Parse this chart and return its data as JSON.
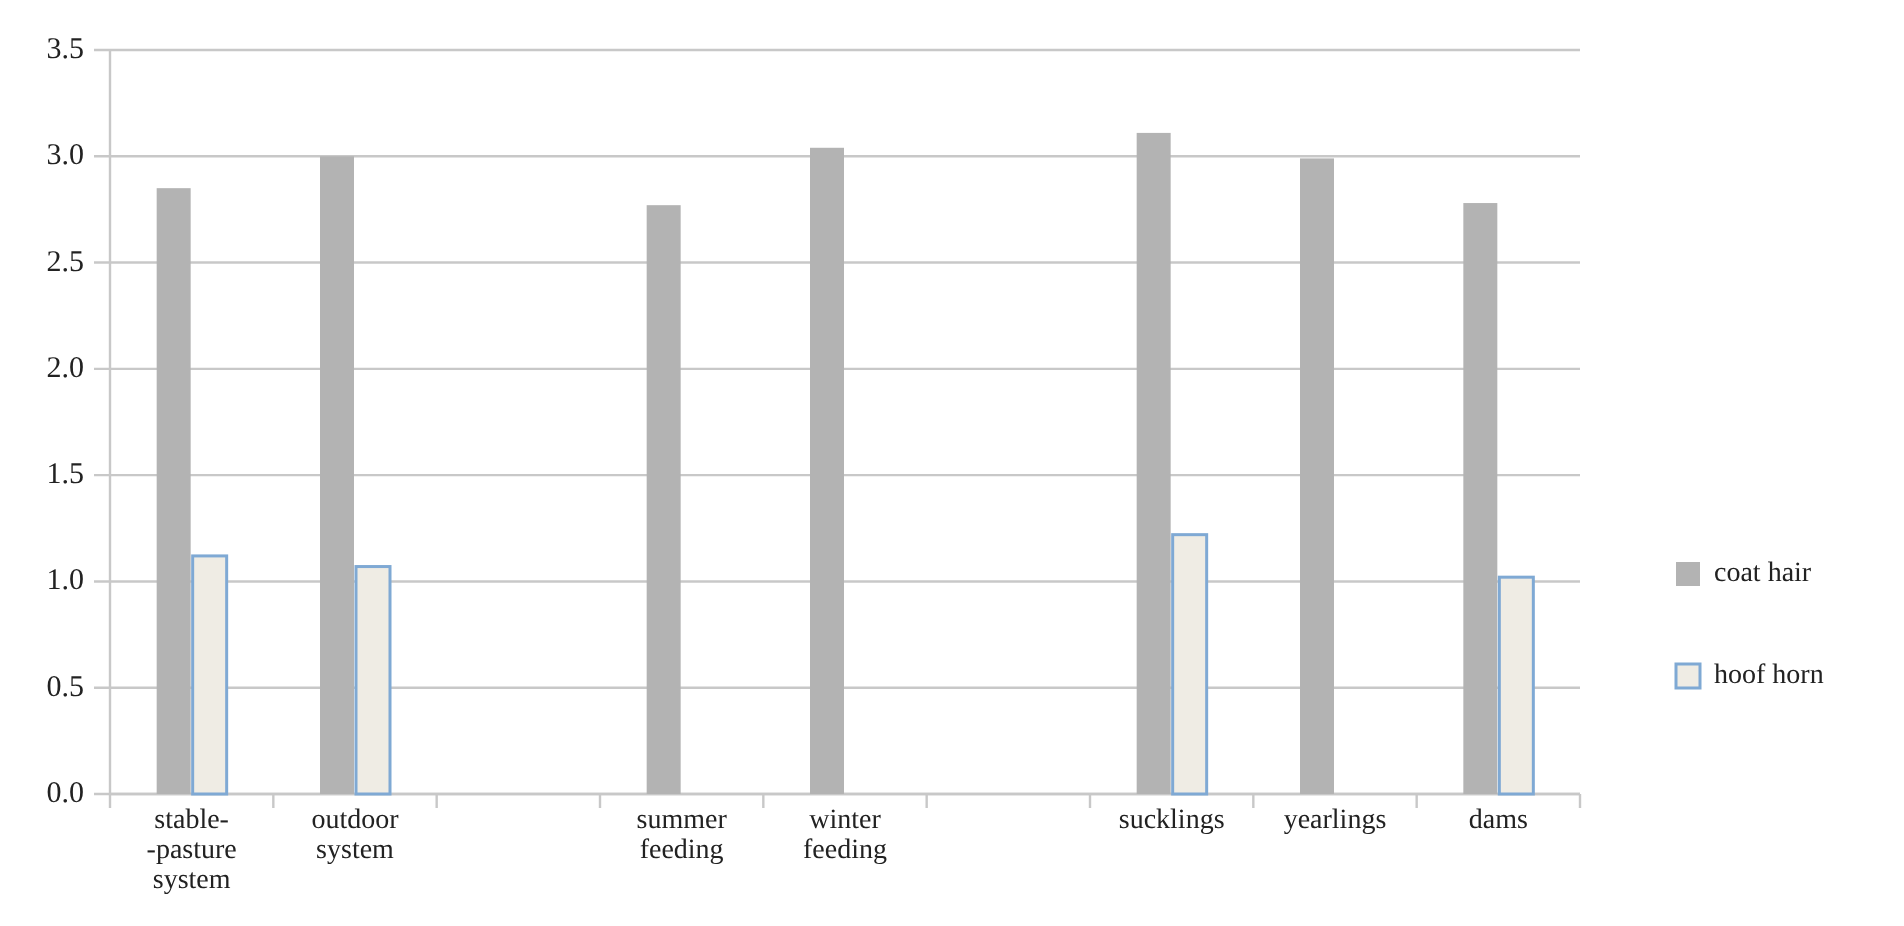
{
  "chart_data": {
    "type": "bar",
    "categories": [
      "stable-\n-pasture\nsystem",
      "outdoor\nsystem",
      null,
      "summer\nfeeding",
      "winter\nfeeding",
      null,
      "sucklings",
      "yearlings",
      "dams"
    ],
    "series": [
      {
        "name": "coat hair",
        "color": "#b3b3b3",
        "values": [
          2.85,
          3.0,
          null,
          2.77,
          3.04,
          null,
          3.11,
          2.99,
          2.78
        ]
      },
      {
        "name": "hoof horn",
        "color": "#efece4",
        "values": [
          1.12,
          1.07,
          null,
          null,
          null,
          null,
          1.22,
          null,
          1.02
        ]
      }
    ],
    "ylim": [
      0,
      3.5
    ],
    "yticks": [
      {
        "value": 0,
        "label": "0.0"
      },
      {
        "value": 0.5,
        "label": "0.5"
      },
      {
        "value": 1,
        "label": "1.0"
      },
      {
        "value": 1.5,
        "label": "1.5"
      },
      {
        "value": 2,
        "label": "2.0"
      },
      {
        "value": 2.5,
        "label": "2.5"
      },
      {
        "value": 3,
        "label": "3.0"
      },
      {
        "value": 3.5,
        "label": "3.5"
      }
    ],
    "grid": "y",
    "legend": "right"
  }
}
